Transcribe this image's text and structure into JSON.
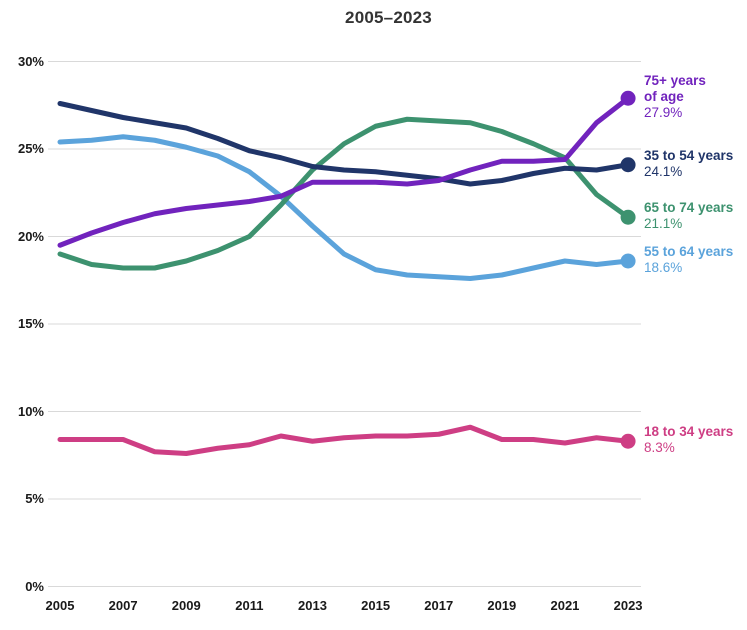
{
  "title": "2005–2023",
  "chart_data": {
    "type": "line",
    "title": "2005–2023",
    "x": [
      2005,
      2006,
      2007,
      2008,
      2009,
      2010,
      2011,
      2012,
      2013,
      2014,
      2015,
      2016,
      2017,
      2018,
      2019,
      2020,
      2021,
      2022,
      2023
    ],
    "x_tick_labels": [
      "2005",
      "2007",
      "2009",
      "2011",
      "2013",
      "2015",
      "2017",
      "2019",
      "2021",
      "2023"
    ],
    "y_ticks": [
      0,
      5,
      10,
      15,
      20,
      25,
      30
    ],
    "y_tick_suffix": "%",
    "ylim": [
      0,
      30
    ],
    "grid": true,
    "legend_position": "right-end-labels",
    "ylabel": "",
    "xlabel": "",
    "series": [
      {
        "name": "75+ years of age",
        "name_lines": [
          "75+ years",
          "of age"
        ],
        "end_label": "27.9%",
        "color": "#7123bd",
        "values": [
          19.5,
          20.2,
          20.8,
          21.3,
          21.6,
          21.8,
          22.0,
          22.3,
          23.1,
          23.1,
          23.1,
          23.0,
          23.2,
          23.8,
          24.3,
          24.3,
          24.4,
          26.5,
          27.9
        ]
      },
      {
        "name": "35 to 54 years",
        "name_lines": [
          "35 to 54 years"
        ],
        "end_label": "24.1%",
        "color": "#203569",
        "values": [
          27.6,
          27.2,
          26.8,
          26.5,
          26.2,
          25.6,
          24.9,
          24.5,
          24.0,
          23.8,
          23.7,
          23.5,
          23.3,
          23.0,
          23.2,
          23.6,
          23.9,
          23.8,
          24.1
        ]
      },
      {
        "name": "65 to 74 years",
        "name_lines": [
          "65 to 74 years"
        ],
        "end_label": "21.1%",
        "color": "#3d926f",
        "values": [
          19.0,
          18.4,
          18.2,
          18.2,
          18.6,
          19.2,
          20.0,
          21.8,
          23.8,
          25.3,
          26.3,
          26.7,
          26.6,
          26.5,
          26.0,
          25.3,
          24.5,
          22.4,
          21.1
        ]
      },
      {
        "name": "55 to 64 years",
        "name_lines": [
          "55 to 64 years"
        ],
        "end_label": "18.6%",
        "color": "#5ba3db",
        "values": [
          25.4,
          25.5,
          25.7,
          25.5,
          25.1,
          24.6,
          23.7,
          22.3,
          20.6,
          19.0,
          18.1,
          17.8,
          17.7,
          17.6,
          17.8,
          18.2,
          18.6,
          18.4,
          18.6
        ]
      },
      {
        "name": "18 to 34 years",
        "name_lines": [
          "18 to 34 years"
        ],
        "end_label": "8.3%",
        "color": "#ce3e84",
        "values": [
          8.4,
          8.4,
          8.4,
          7.7,
          7.6,
          7.9,
          8.1,
          8.6,
          8.3,
          8.5,
          8.6,
          8.6,
          8.7,
          9.1,
          8.4,
          8.4,
          8.2,
          8.5,
          8.3
        ]
      }
    ],
    "style": {
      "gridline_color": "#d9d9d9",
      "background": "#ffffff",
      "line_width": 5,
      "endpoint_dot_radius": 7.5
    }
  }
}
